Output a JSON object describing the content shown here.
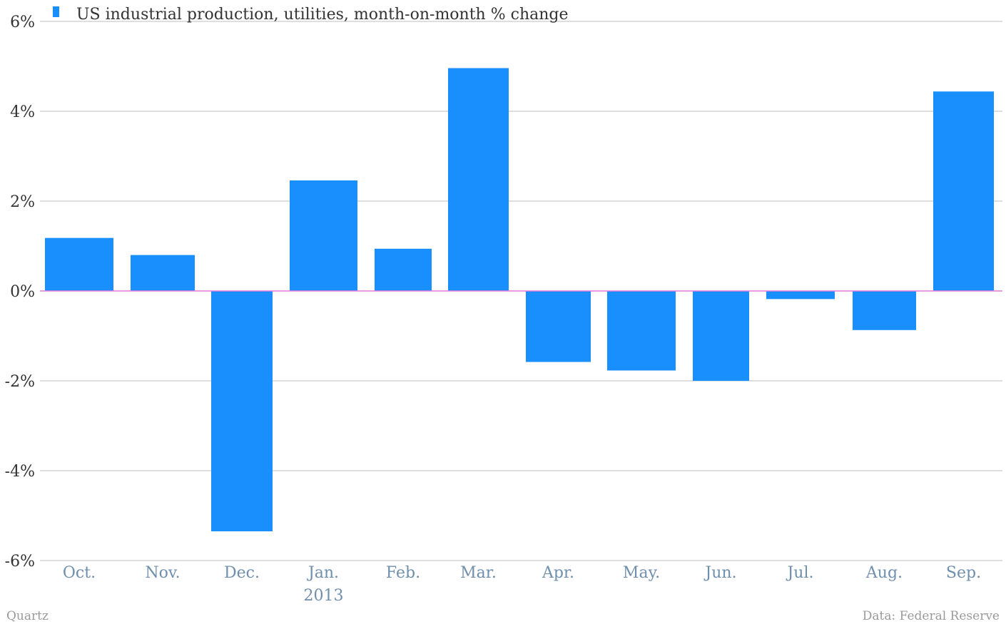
{
  "chart_data": {
    "type": "bar",
    "categories": [
      "Oct.",
      "Nov.",
      "Dec.",
      "Jan.",
      "Feb.",
      "Mar.",
      "Apr.",
      "May.",
      "Jun.",
      "Jul.",
      "Aug.",
      "Sep."
    ],
    "category_sublabels": [
      "",
      "",
      "",
      "2013",
      "",
      "",
      "",
      "",
      "",
      "",
      "",
      ""
    ],
    "series": [
      {
        "name": "US industrial production, utilities, month-on-month % change",
        "color": "#188ffd",
        "values": [
          1.18,
          0.8,
          -5.35,
          2.46,
          0.94,
          4.96,
          -1.58,
          -1.77,
          -2.0,
          -0.18,
          -0.87,
          4.44
        ]
      }
    ],
    "title": "",
    "xlabel": "",
    "ylabel": "",
    "ylim": [
      -6,
      6
    ],
    "yticks": [
      6,
      4,
      2,
      0,
      -2,
      -4,
      -6
    ],
    "ytick_labels": [
      "6%",
      "4%",
      "2%",
      "0%",
      "-2%",
      "-4%",
      "-6%"
    ],
    "grid": true,
    "legend_position": "top-left",
    "zero_line_color": "#e27ad9",
    "grid_color": "#bdbdbd",
    "tick_label_color": "#6f8fad"
  },
  "footer": {
    "source_left": "Quartz",
    "source_right": "Data: Federal Reserve"
  }
}
